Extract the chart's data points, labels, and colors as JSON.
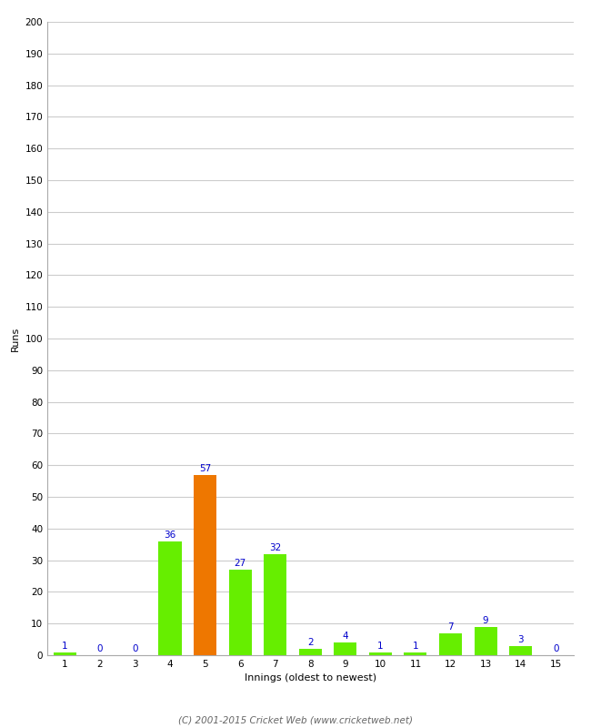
{
  "innings": [
    1,
    2,
    3,
    4,
    5,
    6,
    7,
    8,
    9,
    10,
    11,
    12,
    13,
    14,
    15
  ],
  "runs": [
    1,
    0,
    0,
    36,
    57,
    27,
    32,
    2,
    4,
    1,
    1,
    7,
    9,
    3,
    0
  ],
  "bar_colors": [
    "#66ee00",
    "#66ee00",
    "#66ee00",
    "#66ee00",
    "#ee7700",
    "#66ee00",
    "#66ee00",
    "#66ee00",
    "#66ee00",
    "#66ee00",
    "#66ee00",
    "#66ee00",
    "#66ee00",
    "#66ee00",
    "#66ee00"
  ],
  "xlabel": "Innings (oldest to newest)",
  "ylabel": "Runs",
  "ylim": [
    0,
    200
  ],
  "yticks": [
    0,
    10,
    20,
    30,
    40,
    50,
    60,
    70,
    80,
    90,
    100,
    110,
    120,
    130,
    140,
    150,
    160,
    170,
    180,
    190,
    200
  ],
  "label_color": "#0000cc",
  "label_fontsize": 7.5,
  "axis_label_fontsize": 8,
  "tick_fontsize": 7.5,
  "footer": "(C) 2001-2015 Cricket Web (www.cricketweb.net)",
  "footer_fontsize": 7.5,
  "background_color": "#ffffff",
  "plot_bg_color": "#ffffff",
  "grid_color": "#cccccc",
  "bar_width": 0.65
}
